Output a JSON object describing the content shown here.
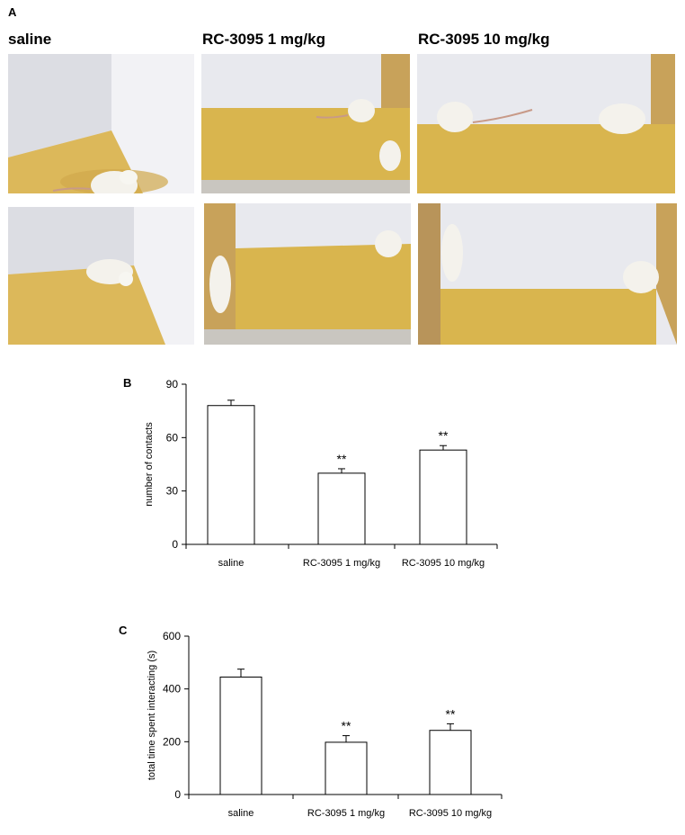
{
  "panel_a": {
    "letter": "A",
    "groups": [
      "saline",
      "RC-3095 1 mg/kg",
      "RC-3095 10 mg/kg"
    ]
  },
  "chart_data": [
    {
      "panel": "B",
      "type": "bar",
      "categories": [
        "saline",
        "RC-3095 1 mg/kg",
        "RC-3095 10 mg/kg"
      ],
      "values": [
        78,
        40,
        53
      ],
      "errors": [
        3,
        2.5,
        2.5
      ],
      "significance": [
        "",
        "**",
        "**"
      ],
      "title": "",
      "xlabel": "",
      "ylabel": "number of contacts",
      "ylim": [
        0,
        90
      ],
      "yticks": [
        0,
        30,
        60,
        90
      ],
      "grid": false,
      "legend": false
    },
    {
      "panel": "C",
      "type": "bar",
      "categories": [
        "saline",
        "RC-3095 1 mg/kg",
        "RC-3095 10 mg/kg"
      ],
      "values": [
        445,
        198,
        243
      ],
      "errors": [
        30,
        25,
        25
      ],
      "significance": [
        "",
        "**",
        "**"
      ],
      "title": "",
      "xlabel": "",
      "ylabel": "total time spent interacting (s)",
      "ylim": [
        0,
        600
      ],
      "yticks": [
        0,
        200,
        400,
        600
      ],
      "grid": false,
      "legend": false
    }
  ]
}
